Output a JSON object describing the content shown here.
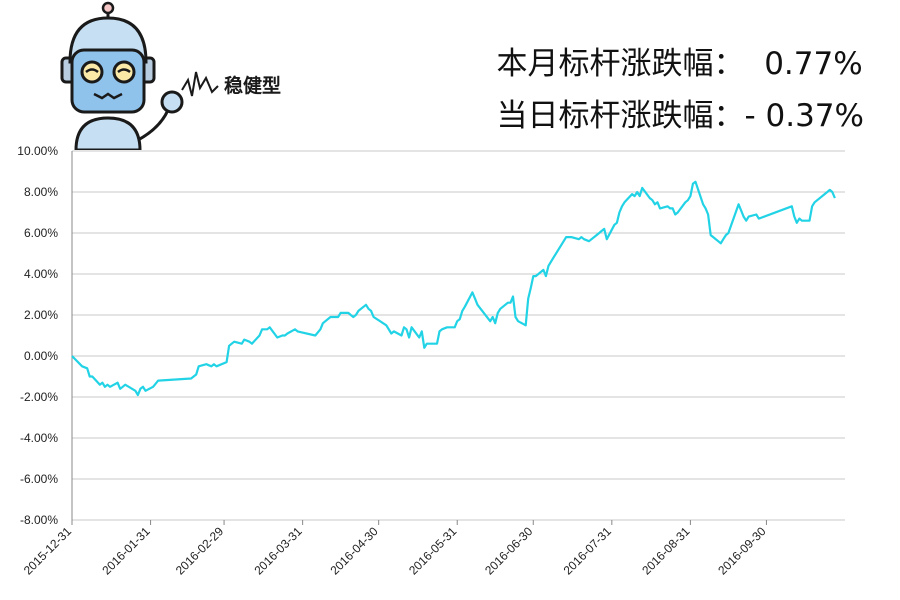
{
  "header": {
    "mascot": {
      "icon": "robot-mascot-icon",
      "label": "稳健型"
    },
    "monthly": {
      "label": "本月标杆涨跌幅：",
      "value": "0.77%"
    },
    "daily": {
      "label": "当日标杆涨跌幅：",
      "value": "- 0.37%"
    }
  },
  "chart_data": {
    "type": "line",
    "title": "",
    "xlabel": "",
    "ylabel": "",
    "ylim": [
      -8,
      10
    ],
    "yticks": [
      -8,
      -6,
      -4,
      -2,
      0,
      2,
      4,
      6,
      8,
      10
    ],
    "ytick_labels": [
      "-8.00%",
      "-6.00%",
      "-4.00%",
      "-2.00%",
      "0.00%",
      "2.00%",
      "4.00%",
      "6.00%",
      "8.00%",
      "10.00%"
    ],
    "xlim": [
      "2015-12-31",
      "2016-10-31"
    ],
    "xtick_labels": [
      "2015-12-31",
      "2016-01-31",
      "2016-02-29",
      "2016-03-31",
      "2016-04-30",
      "2016-05-31",
      "2016-06-30",
      "2016-07-31",
      "2016-08-31",
      "2016-09-30"
    ],
    "grid": true,
    "line_color": "#22d3e6",
    "series": [
      {
        "name": "",
        "points": [
          [
            "2015-12-31",
            0.0
          ],
          [
            "2016-01-04",
            -0.5
          ],
          [
            "2016-01-06",
            -0.6
          ],
          [
            "2016-01-07",
            -1.0
          ],
          [
            "2016-01-08",
            -1.0
          ],
          [
            "2016-01-11",
            -1.4
          ],
          [
            "2016-01-12",
            -1.3
          ],
          [
            "2016-01-13",
            -1.5
          ],
          [
            "2016-01-14",
            -1.4
          ],
          [
            "2016-01-15",
            -1.5
          ],
          [
            "2016-01-18",
            -1.3
          ],
          [
            "2016-01-19",
            -1.6
          ],
          [
            "2016-01-20",
            -1.5
          ],
          [
            "2016-01-21",
            -1.4
          ],
          [
            "2016-01-25",
            -1.7
          ],
          [
            "2016-01-26",
            -1.9
          ],
          [
            "2016-01-27",
            -1.6
          ],
          [
            "2016-01-28",
            -1.5
          ],
          [
            "2016-01-29",
            -1.7
          ],
          [
            "2016-02-01",
            -1.5
          ],
          [
            "2016-02-03",
            -1.2
          ],
          [
            "2016-02-16",
            -1.1
          ],
          [
            "2016-02-18",
            -0.9
          ],
          [
            "2016-02-19",
            -0.5
          ],
          [
            "2016-02-22",
            -0.4
          ],
          [
            "2016-02-24",
            -0.5
          ],
          [
            "2016-02-25",
            -0.4
          ],
          [
            "2016-02-26",
            -0.5
          ],
          [
            "2016-03-01",
            -0.3
          ],
          [
            "2016-03-02",
            0.5
          ],
          [
            "2016-03-03",
            0.6
          ],
          [
            "2016-03-04",
            0.7
          ],
          [
            "2016-03-07",
            0.6
          ],
          [
            "2016-03-08",
            0.8
          ],
          [
            "2016-03-10",
            0.7
          ],
          [
            "2016-03-11",
            0.6
          ],
          [
            "2016-03-14",
            1.0
          ],
          [
            "2016-03-15",
            1.3
          ],
          [
            "2016-03-17",
            1.3
          ],
          [
            "2016-03-18",
            1.4
          ],
          [
            "2016-03-21",
            0.9
          ],
          [
            "2016-03-23",
            1.0
          ],
          [
            "2016-03-24",
            1.0
          ],
          [
            "2016-03-25",
            1.1
          ],
          [
            "2016-03-28",
            1.3
          ],
          [
            "2016-03-29",
            1.2
          ],
          [
            "2016-04-05",
            1.0
          ],
          [
            "2016-04-07",
            1.3
          ],
          [
            "2016-04-08",
            1.6
          ],
          [
            "2016-04-11",
            1.9
          ],
          [
            "2016-04-14",
            1.9
          ],
          [
            "2016-04-15",
            2.1
          ],
          [
            "2016-04-18",
            2.1
          ],
          [
            "2016-04-19",
            2.0
          ],
          [
            "2016-04-20",
            1.9
          ],
          [
            "2016-04-21",
            2.0
          ],
          [
            "2016-04-22",
            2.2
          ],
          [
            "2016-04-25",
            2.5
          ],
          [
            "2016-04-26",
            2.3
          ],
          [
            "2016-04-27",
            2.2
          ],
          [
            "2016-04-28",
            1.9
          ],
          [
            "2016-05-03",
            1.5
          ],
          [
            "2016-05-05",
            1.1
          ],
          [
            "2016-05-06",
            1.2
          ],
          [
            "2016-05-09",
            1.0
          ],
          [
            "2016-05-10",
            1.4
          ],
          [
            "2016-05-11",
            1.3
          ],
          [
            "2016-05-12",
            0.9
          ],
          [
            "2016-05-13",
            1.4
          ],
          [
            "2016-05-16",
            0.9
          ],
          [
            "2016-05-17",
            1.2
          ],
          [
            "2016-05-18",
            0.4
          ],
          [
            "2016-05-19",
            0.6
          ],
          [
            "2016-05-23",
            0.6
          ],
          [
            "2016-05-24",
            1.2
          ],
          [
            "2016-05-25",
            1.3
          ],
          [
            "2016-05-27",
            1.4
          ],
          [
            "2016-05-30",
            1.4
          ],
          [
            "2016-05-31",
            1.7
          ],
          [
            "2016-06-01",
            1.8
          ],
          [
            "2016-06-02",
            2.2
          ],
          [
            "2016-06-03",
            2.4
          ],
          [
            "2016-06-06",
            3.1
          ],
          [
            "2016-06-07",
            2.8
          ],
          [
            "2016-06-08",
            2.5
          ],
          [
            "2016-06-13",
            1.7
          ],
          [
            "2016-06-14",
            1.9
          ],
          [
            "2016-06-15",
            1.6
          ],
          [
            "2016-06-16",
            2.1
          ],
          [
            "2016-06-17",
            2.3
          ],
          [
            "2016-06-20",
            2.6
          ],
          [
            "2016-06-21",
            2.6
          ],
          [
            "2016-06-22",
            2.9
          ],
          [
            "2016-06-23",
            1.9
          ],
          [
            "2016-06-24",
            1.7
          ],
          [
            "2016-06-27",
            1.5
          ],
          [
            "2016-06-28",
            2.8
          ],
          [
            "2016-06-29",
            3.3
          ],
          [
            "2016-06-30",
            3.9
          ],
          [
            "2016-07-01",
            3.9
          ],
          [
            "2016-07-04",
            4.2
          ],
          [
            "2016-07-05",
            3.9
          ],
          [
            "2016-07-06",
            4.4
          ],
          [
            "2016-07-08",
            4.8
          ],
          [
            "2016-07-11",
            5.4
          ],
          [
            "2016-07-13",
            5.8
          ],
          [
            "2016-07-15",
            5.8
          ],
          [
            "2016-07-18",
            5.7
          ],
          [
            "2016-07-19",
            5.8
          ],
          [
            "2016-07-20",
            5.7
          ],
          [
            "2016-07-22",
            5.6
          ],
          [
            "2016-07-25",
            5.9
          ],
          [
            "2016-07-26",
            6.0
          ],
          [
            "2016-07-27",
            6.1
          ],
          [
            "2016-07-28",
            6.2
          ],
          [
            "2016-07-29",
            5.7
          ],
          [
            "2016-08-01",
            6.4
          ],
          [
            "2016-08-02",
            6.5
          ],
          [
            "2016-08-03",
            7.0
          ],
          [
            "2016-08-04",
            7.3
          ],
          [
            "2016-08-05",
            7.5
          ],
          [
            "2016-08-08",
            7.9
          ],
          [
            "2016-08-09",
            7.8
          ],
          [
            "2016-08-10",
            8.0
          ],
          [
            "2016-08-11",
            7.8
          ],
          [
            "2016-08-12",
            8.2
          ],
          [
            "2016-08-15",
            7.7
          ],
          [
            "2016-08-16",
            7.6
          ],
          [
            "2016-08-17",
            7.4
          ],
          [
            "2016-08-18",
            7.5
          ],
          [
            "2016-08-19",
            7.2
          ],
          [
            "2016-08-22",
            7.3
          ],
          [
            "2016-08-23",
            7.2
          ],
          [
            "2016-08-24",
            7.2
          ],
          [
            "2016-08-25",
            6.9
          ],
          [
            "2016-08-26",
            7.0
          ],
          [
            "2016-08-29",
            7.5
          ],
          [
            "2016-08-30",
            7.6
          ],
          [
            "2016-08-31",
            7.8
          ],
          [
            "2016-09-01",
            8.4
          ],
          [
            "2016-09-02",
            8.5
          ],
          [
            "2016-09-05",
            7.4
          ],
          [
            "2016-09-06",
            7.2
          ],
          [
            "2016-09-07",
            6.9
          ],
          [
            "2016-09-08",
            5.9
          ],
          [
            "2016-09-09",
            5.8
          ],
          [
            "2016-09-12",
            5.5
          ],
          [
            "2016-09-13",
            5.7
          ],
          [
            "2016-09-14",
            5.9
          ],
          [
            "2016-09-15",
            6.0
          ],
          [
            "2016-09-19",
            7.4
          ],
          [
            "2016-09-20",
            7.1
          ],
          [
            "2016-09-21",
            6.8
          ],
          [
            "2016-09-22",
            6.6
          ],
          [
            "2016-09-23",
            6.8
          ],
          [
            "2016-09-26",
            6.9
          ],
          [
            "2016-09-27",
            6.7
          ],
          [
            "2016-10-10",
            7.3
          ],
          [
            "2016-10-11",
            6.8
          ],
          [
            "2016-10-12",
            6.5
          ],
          [
            "2016-10-13",
            6.7
          ],
          [
            "2016-10-14",
            6.6
          ],
          [
            "2016-10-17",
            6.6
          ],
          [
            "2016-10-18",
            7.3
          ],
          [
            "2016-10-19",
            7.5
          ],
          [
            "2016-10-24",
            8.0
          ],
          [
            "2016-10-25",
            8.1
          ],
          [
            "2016-10-26",
            8.0
          ],
          [
            "2016-10-27",
            7.7
          ]
        ]
      }
    ]
  }
}
